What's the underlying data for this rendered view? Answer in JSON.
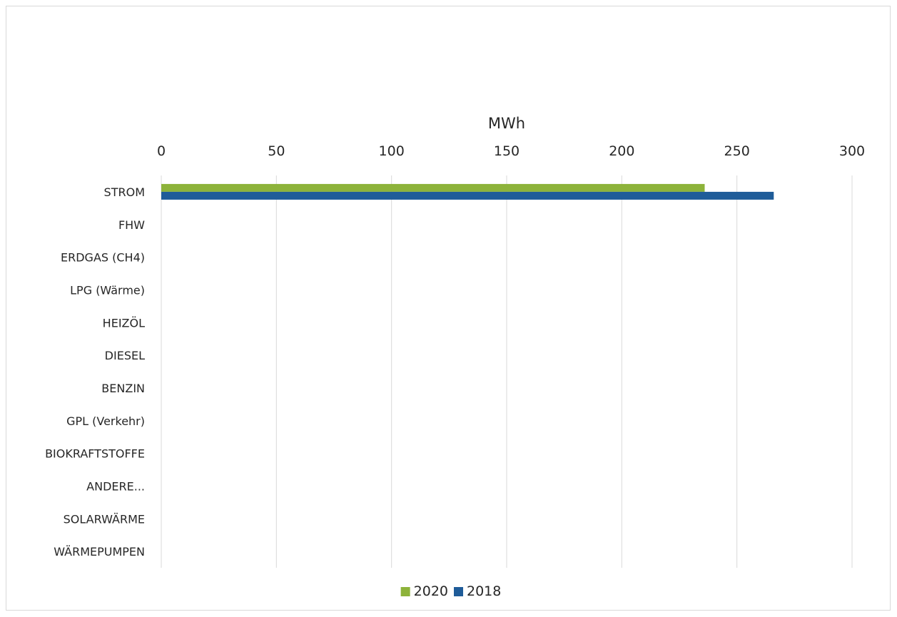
{
  "chart_data": {
    "type": "bar",
    "orientation": "horizontal",
    "title": "",
    "xlabel": "MWh",
    "ylabel": "",
    "x_axis_position": "top",
    "xlim": [
      0,
      300
    ],
    "x_ticks": [
      0,
      50,
      100,
      150,
      200,
      250,
      300
    ],
    "categories": [
      "STROM",
      "FHW",
      "ERDGAS (CH4)",
      "LPG (Wärme)",
      "HEIZÖL",
      "DIESEL",
      "BENZIN",
      "GPL (Verkehr)",
      "BIOKRAFTSTOFFE",
      "ANDERE...",
      "SOLARWÄRME",
      "WÄRMEPUMPEN"
    ],
    "series": [
      {
        "name": "2020",
        "color": "#8db33a",
        "values": [
          236,
          0,
          0,
          0,
          0,
          0,
          0,
          0,
          0,
          0,
          0,
          0
        ]
      },
      {
        "name": "2018",
        "color": "#1f5c99",
        "values": [
          266,
          0,
          0,
          0,
          0,
          0,
          0,
          0,
          0,
          0,
          0,
          0
        ]
      }
    ],
    "grid": "vertical",
    "gridline_color": "#d9d9d9",
    "legend": "bottom-center"
  }
}
